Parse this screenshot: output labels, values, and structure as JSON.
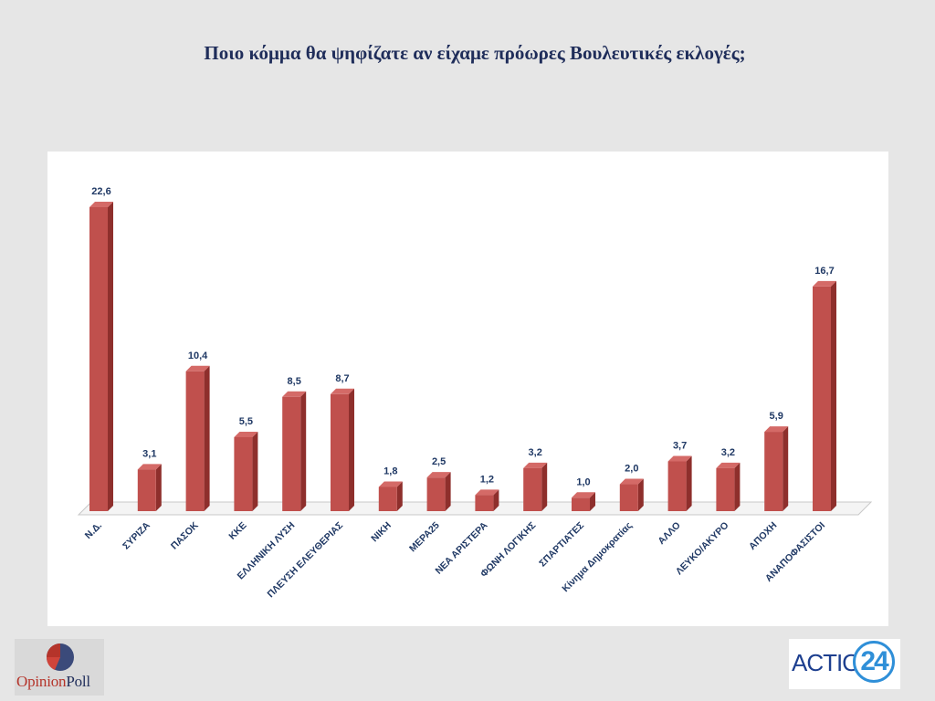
{
  "slide": {
    "title": "Ποιο κόμμα θα ψηφίζατε αν είχαμε πρόωρες Βουλευτικές εκλογές;"
  },
  "logos": {
    "opinion_poll_part1": "Opinion",
    "opinion_poll_part2": "Poll",
    "action24_text": "ACTION",
    "action24_number": "24"
  },
  "colors": {
    "bar_front": "#c0504d",
    "bar_side": "#8e2f2c",
    "bar_top": "#d46a67",
    "label_color": "#1f3864",
    "title_color": "#1f2d5a"
  },
  "chart_data": {
    "type": "bar",
    "title": "",
    "xlabel": "",
    "ylabel": "",
    "ylim": [
      0,
      24
    ],
    "grid": false,
    "legend": "none",
    "categories": [
      "Ν.Δ.",
      "ΣΥΡΙΖΑ",
      "ΠΑΣΟΚ",
      "ΚΚΕ",
      "ΕΛΛΗΝΙΚΗ ΛΥΣΗ",
      "ΠΛΕΥΣΗ ΕΛΕΥΘΕΡΙΑΣ",
      "ΝΙΚΗ",
      "ΜΕΡΑ25",
      "ΝΕΑ ΑΡΙΣΤΕΡΑ",
      "ΦΩΝΗ ΛΟΓΙΚΗΣ",
      "ΣΠΑΡΤΙΑΤΕΣ",
      "Κίνημα Δημοκρατίας",
      "ΑΛΛΟ",
      "ΛΕΥΚΟ/ΑΚΥΡΟ",
      "ΑΠΟΧΗ",
      "ΑΝΑΠΟΦΑΣΙΣΤΟΙ"
    ],
    "values": [
      22.6,
      3.1,
      10.4,
      5.5,
      8.5,
      8.7,
      1.8,
      2.5,
      1.2,
      3.2,
      1.0,
      2.0,
      3.7,
      3.2,
      5.9,
      16.7
    ],
    "value_labels": [
      "22,6",
      "3,1",
      "10,4",
      "5,5",
      "8,5",
      "8,7",
      "1,8",
      "2,5",
      "1,2",
      "3,2",
      "1,0",
      "2,0",
      "3,7",
      "3,2",
      "5,9",
      "16,7"
    ]
  }
}
